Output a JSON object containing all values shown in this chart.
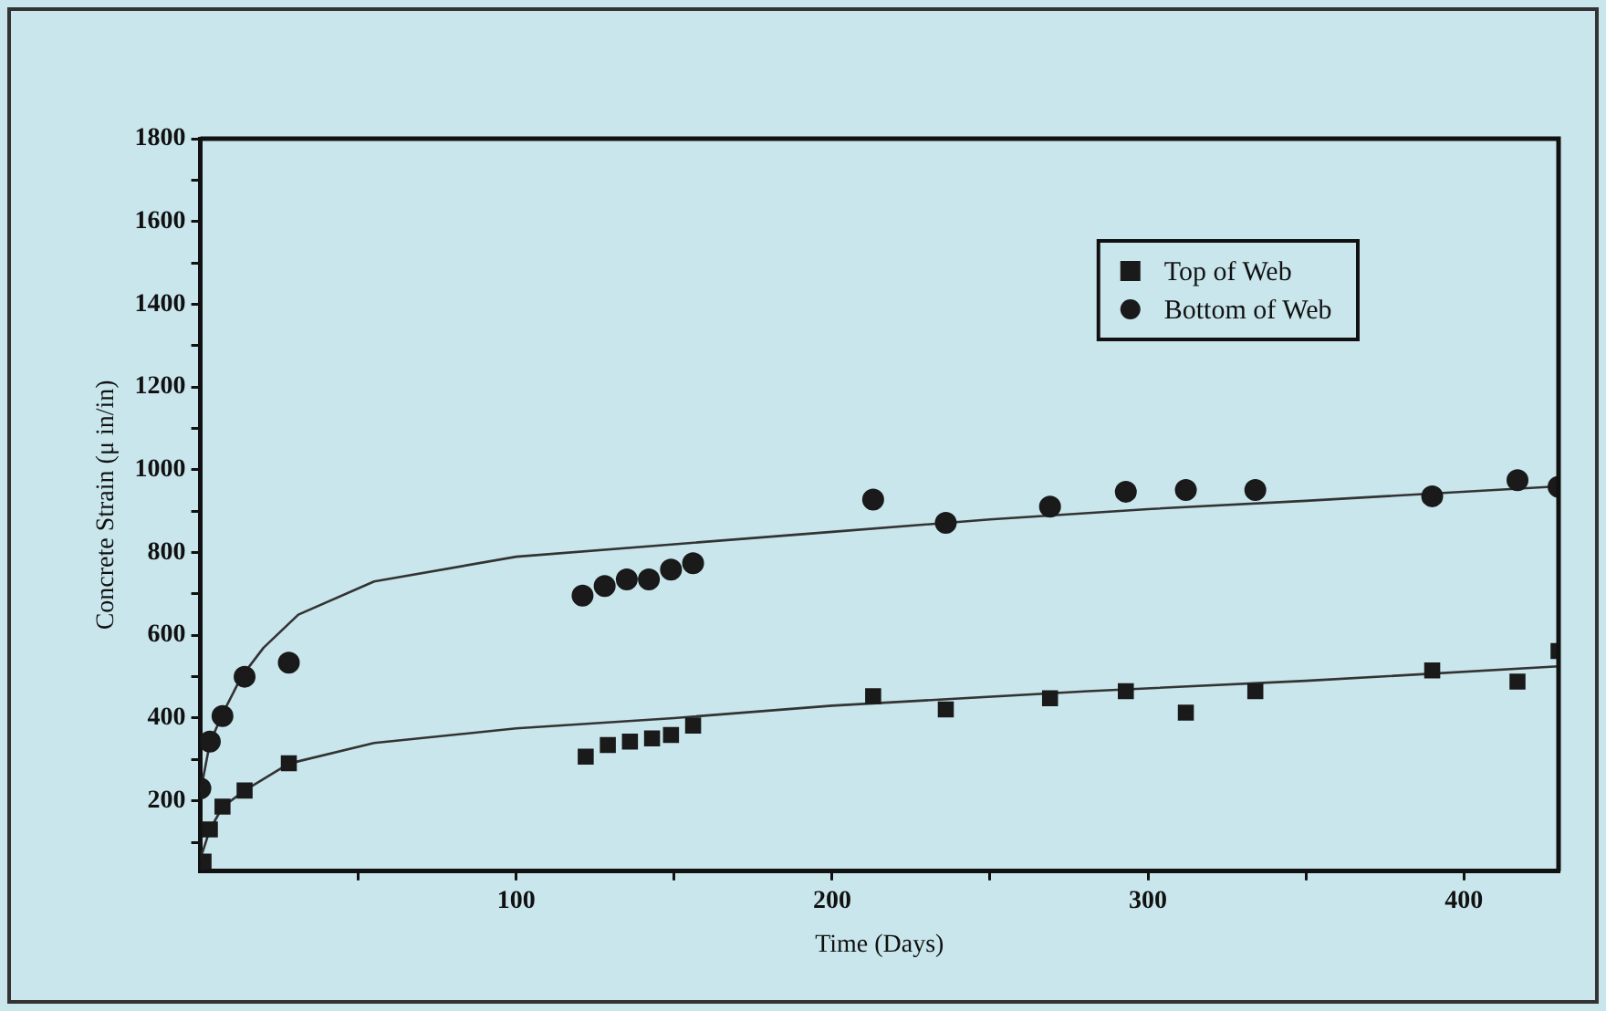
{
  "chart_data": {
    "type": "scatter",
    "xlabel": "Time (Days)",
    "ylabel": "Concrete Strain (μ in/in)",
    "xlim": [
      0,
      430
    ],
    "ylim": [
      30,
      1800
    ],
    "xticks": [
      {
        "value": 50,
        "label": null
      },
      100,
      {
        "value": 150,
        "label": null
      },
      200,
      {
        "value": 250,
        "label": null
      },
      300,
      {
        "value": 350,
        "label": null
      },
      400
    ],
    "yticks": [
      {
        "value": 100,
        "label": null
      },
      200,
      {
        "value": 300,
        "label": null
      },
      400,
      {
        "value": 500,
        "label": null
      },
      600,
      {
        "value": 700,
        "label": null
      },
      800,
      {
        "value": 900,
        "label": null
      },
      1000,
      {
        "value": 1100,
        "label": null
      },
      1200,
      {
        "value": 1300,
        "label": null
      },
      1400,
      {
        "value": 1500,
        "label": null
      },
      1600,
      {
        "value": 1700,
        "label": null
      },
      1800
    ],
    "grid": false,
    "legend": "top right",
    "series": [
      {
        "name": "Top of Web",
        "color": "#1a1a1a",
        "marker": "square",
        "x": [
          1,
          3,
          7,
          14,
          28,
          122,
          129,
          136,
          143,
          149,
          156,
          213,
          236,
          269,
          293,
          312,
          334,
          390,
          417,
          430
        ],
        "values": [
          53,
          131,
          186,
          225,
          291,
          307,
          335,
          343,
          351,
          359,
          382,
          453,
          421,
          448,
          465,
          413,
          465,
          515,
          488,
          562
        ]
      },
      {
        "name": "Bottom of Web",
        "color": "#1a1a1a",
        "marker": "circle",
        "x": [
          0,
          3,
          7,
          14,
          28,
          121,
          128,
          135,
          142,
          149,
          156,
          213,
          236,
          269,
          293,
          312,
          334,
          390,
          417,
          430
        ],
        "values": [
          230,
          343,
          405,
          500,
          534,
          696,
          719,
          735,
          735,
          759,
          774,
          928,
          872,
          911,
          947,
          951,
          951,
          936,
          975,
          959
        ]
      },
      {
        "type": "line",
        "color": "#333333",
        "marker": "none",
        "x": [
          0,
          3,
          7,
          14,
          28,
          55,
          100,
          150,
          200,
          281,
          350,
          430
        ],
        "values": [
          60,
          130,
          185,
          225,
          290,
          340,
          375,
          400,
          430,
          465,
          490,
          525
        ]
      },
      {
        "type": "line",
        "color": "#333333",
        "marker": "none",
        "x": [
          0,
          3,
          7,
          13,
          20,
          31,
          55,
          100,
          150,
          200,
          250,
          300,
          350,
          430
        ],
        "values": [
          220,
          340,
          410,
          500,
          570,
          650,
          730,
          790,
          820,
          850,
          880,
          905,
          925,
          960
        ]
      }
    ]
  }
}
